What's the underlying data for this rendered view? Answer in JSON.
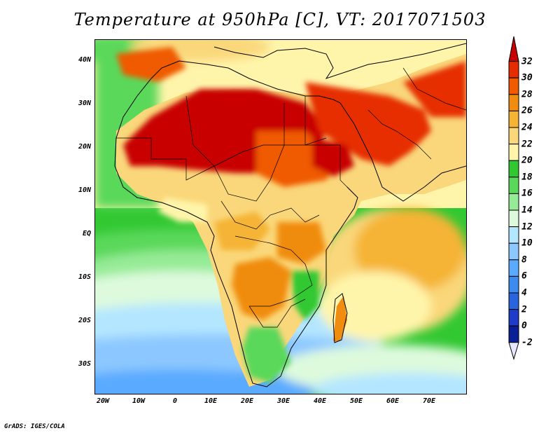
{
  "title": "Temperature at 950hPa [C], VT: 2017071503",
  "credit": "GrADS: IGES/COLA",
  "map": {
    "projection": "lat-lon",
    "lon_range": [
      -22,
      80
    ],
    "lat_range": [
      -37,
      45
    ],
    "lat_labels": [
      "40N",
      "30N",
      "20N",
      "10N",
      "EQ",
      "10S",
      "20S",
      "30S"
    ],
    "lon_labels": [
      "20W",
      "10W",
      "0",
      "10E",
      "20E",
      "30E",
      "40E",
      "50E",
      "60E",
      "70E"
    ],
    "variable": "temperature",
    "level": "950hPa",
    "units": "C",
    "valid_time": "2017071503",
    "features": [
      "country borders",
      "coastlines",
      "filled temperature contours"
    ]
  },
  "colorbar": {
    "labels": [
      "32",
      "30",
      "28",
      "26",
      "24",
      "22",
      "20",
      "18",
      "16",
      "14",
      "12",
      "10",
      "8",
      "6",
      "4",
      "2",
      "0",
      "-2"
    ],
    "colors": [
      "#c80000",
      "#e62d00",
      "#f05a00",
      "#f08c0f",
      "#f5b435",
      "#fad77a",
      "#fff5aa",
      "#32c832",
      "#5ad85a",
      "#96eb96",
      "#ddfadd",
      "#b4e6ff",
      "#8cc8ff",
      "#5aaaff",
      "#3c8cf0",
      "#2864dc",
      "#1e3cc8",
      "#0a1e96",
      "#000a5a"
    ],
    "extend": "both"
  }
}
